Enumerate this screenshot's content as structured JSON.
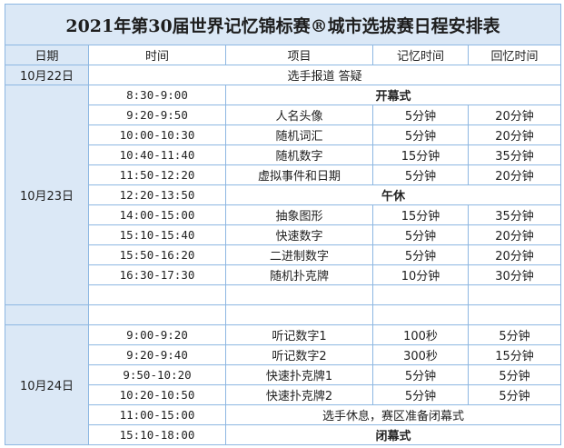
{
  "title": "2021年第30届世界记忆锦标赛®城市选拔赛日程安排表",
  "headers": [
    "日期",
    "时间",
    "项目",
    "记忆时间",
    "回忆时间"
  ],
  "day1": {
    "date": "10月22日",
    "event": "选手报道 答疑"
  },
  "day2": {
    "date": "10月23日",
    "rows": [
      [
        "8:30-9:00",
        "开幕式"
      ],
      [
        "9:20-9:50",
        "人名头像",
        "5分钟",
        "20分钟"
      ],
      [
        "10:00-10:30",
        "随机词汇",
        "5分钟",
        "20分钟"
      ],
      [
        "10:40-11:40",
        "随机数字",
        "15分钟",
        "35分钟"
      ],
      [
        "11:50-12:20",
        "虚拟事件和日期",
        "5分钟",
        "20分钟"
      ],
      [
        "12:20-13:50",
        "午休"
      ],
      [
        "14:00-15:00",
        "抽象图形",
        "15分钟",
        "35分钟"
      ],
      [
        "15:10-15:40",
        "快速数字",
        "5分钟",
        "20分钟"
      ],
      [
        "15:50-16:20",
        "二进制数字",
        "5分钟",
        "20分钟"
      ],
      [
        "16:30-17:30",
        "随机扑克牌",
        "10分钟",
        "30分钟"
      ]
    ]
  },
  "day3": {
    "date": "10月24日",
    "rows": [
      [
        "9:00-9:20",
        "听记数字1",
        "100秒",
        "5分钟"
      ],
      [
        "9:20-9:40",
        "听记数字2",
        "300秒",
        "15分钟"
      ],
      [
        "9:50-10:20",
        "快速扑克牌1",
        "5分钟",
        "5分钟"
      ],
      [
        "10:20-10:50",
        "快速扑克牌2",
        "5分钟",
        "5分钟"
      ],
      [
        "11:00-15:00",
        "选手休息，赛区准备闭幕式"
      ],
      [
        "15:10-18:00",
        "闭幕式"
      ]
    ]
  }
}
